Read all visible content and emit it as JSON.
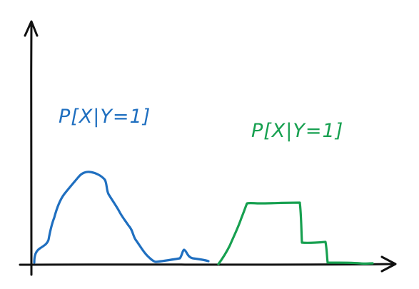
{
  "labels": {
    "blue_curve": "P[X|Y=1]",
    "green_curve": "P[X|Y=1]"
  },
  "colors": {
    "axes": "#111111",
    "blue_curve": "#1f6fc0",
    "green_curve": "#17a050",
    "background": "#ffffff"
  }
}
